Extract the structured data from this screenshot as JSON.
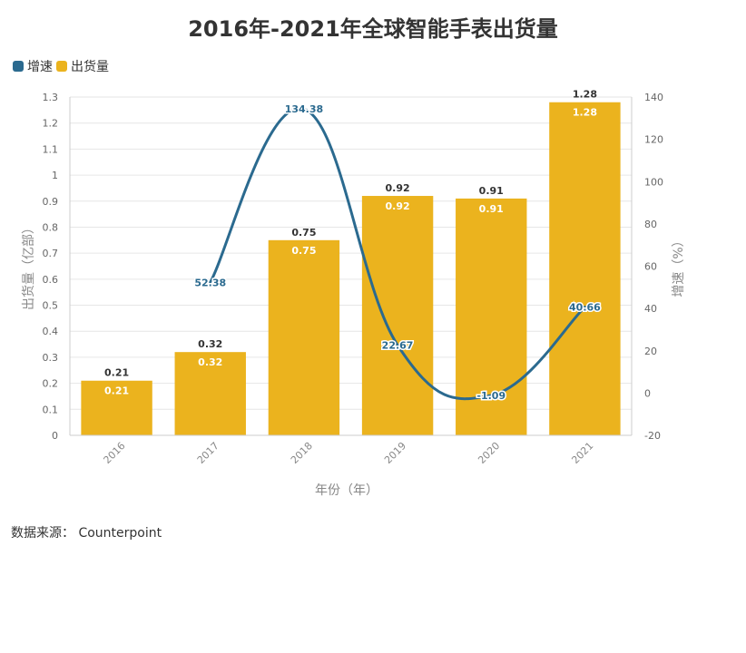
{
  "chart_data": {
    "type": "bar",
    "title": "2016年-2021年全球智能手表出货量",
    "categories": [
      "2016",
      "2017",
      "2018",
      "2019",
      "2020",
      "2021"
    ],
    "series": [
      {
        "name": "出货量",
        "type": "bar",
        "axis": "left",
        "color": "#EBB31E",
        "values": [
          0.21,
          0.32,
          0.75,
          0.92,
          0.91,
          1.28
        ]
      },
      {
        "name": "增速",
        "type": "line",
        "axis": "right",
        "color": "#2B6A8F",
        "values": [
          null,
          52.38,
          134.38,
          22.67,
          -1.09,
          40.66
        ]
      }
    ],
    "xlabel": "年份（年）",
    "ylabel": "出货量（亿部）",
    "y2label": "增速（%）",
    "ylim": [
      0,
      1.3
    ],
    "y2lim": [
      -20,
      140
    ],
    "yticks": [
      "0",
      "0.1",
      "0.2",
      "0.3",
      "0.4",
      "0.5",
      "0.6",
      "0.7",
      "0.8",
      "0.9",
      "1",
      "1.1",
      "1.2",
      "1.3"
    ],
    "y2ticks": [
      "-20",
      "0",
      "20",
      "40",
      "60",
      "80",
      "100",
      "120",
      "140"
    ],
    "grid": true,
    "legend_position": "top-left"
  },
  "source": "数据来源：  Counterpoint"
}
